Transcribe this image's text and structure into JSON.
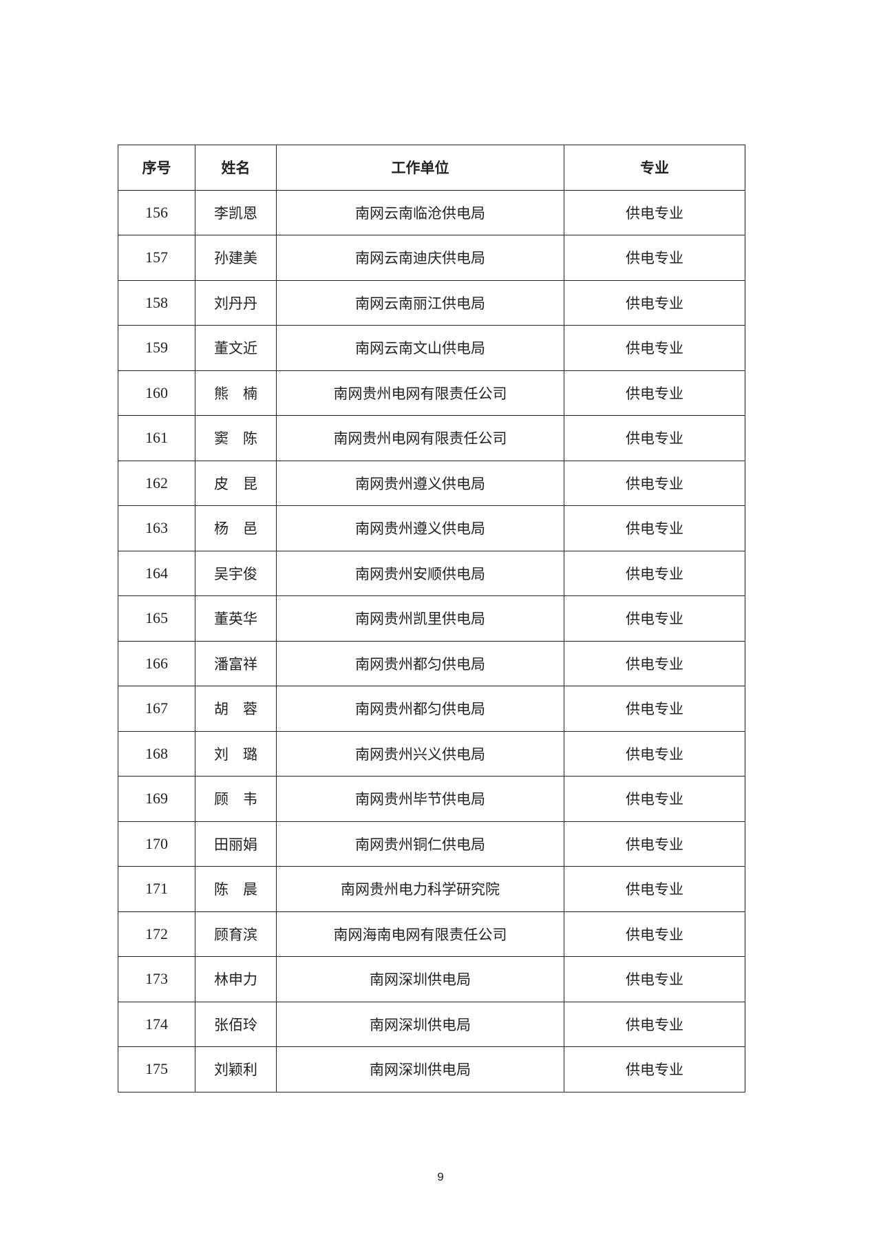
{
  "table": {
    "headers": [
      "序号",
      "姓名",
      "工作单位",
      "专业"
    ],
    "rows": [
      [
        "156",
        "李凯恩",
        "南网云南临沧供电局",
        "供电专业"
      ],
      [
        "157",
        "孙建美",
        "南网云南迪庆供电局",
        "供电专业"
      ],
      [
        "158",
        "刘丹丹",
        "南网云南丽江供电局",
        "供电专业"
      ],
      [
        "159",
        "董文近",
        "南网云南文山供电局",
        "供电专业"
      ],
      [
        "160",
        "熊　楠",
        "南网贵州电网有限责任公司",
        "供电专业"
      ],
      [
        "161",
        "窦　陈",
        "南网贵州电网有限责任公司",
        "供电专业"
      ],
      [
        "162",
        "皮　昆",
        "南网贵州遵义供电局",
        "供电专业"
      ],
      [
        "163",
        "杨　邑",
        "南网贵州遵义供电局",
        "供电专业"
      ],
      [
        "164",
        "吴宇俊",
        "南网贵州安顺供电局",
        "供电专业"
      ],
      [
        "165",
        "董英华",
        "南网贵州凯里供电局",
        "供电专业"
      ],
      [
        "166",
        "潘富祥",
        "南网贵州都匀供电局",
        "供电专业"
      ],
      [
        "167",
        "胡　蓉",
        "南网贵州都匀供电局",
        "供电专业"
      ],
      [
        "168",
        "刘　璐",
        "南网贵州兴义供电局",
        "供电专业"
      ],
      [
        "169",
        "顾　韦",
        "南网贵州毕节供电局",
        "供电专业"
      ],
      [
        "170",
        "田丽娟",
        "南网贵州铜仁供电局",
        "供电专业"
      ],
      [
        "171",
        "陈　晨",
        "南网贵州电力科学研究院",
        "供电专业"
      ],
      [
        "172",
        "顾育滨",
        "南网海南电网有限责任公司",
        "供电专业"
      ],
      [
        "173",
        "林申力",
        "南网深圳供电局",
        "供电专业"
      ],
      [
        "174",
        "张佰玲",
        "南网深圳供电局",
        "供电专业"
      ],
      [
        "175",
        "刘颖利",
        "南网深圳供电局",
        "供电专业"
      ]
    ]
  },
  "page_number": "9"
}
